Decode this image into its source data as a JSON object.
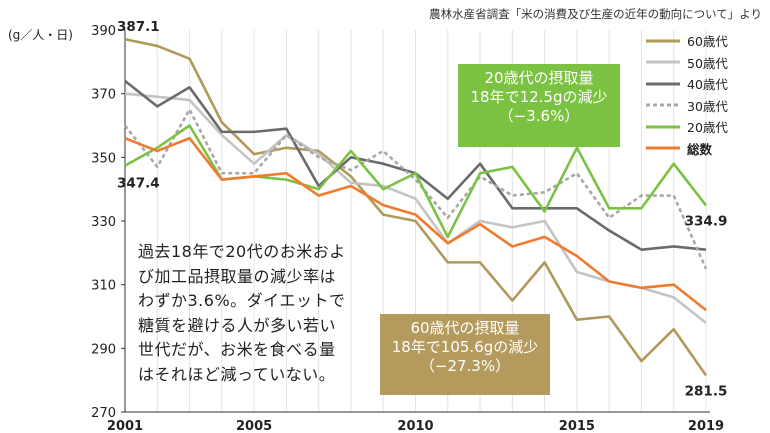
{
  "source_note": "農林水産省調査「米の消費及び生産の近年の動向について」より",
  "chart_data": {
    "type": "line",
    "ylabel": "(g／人・日)",
    "ylim": [
      270,
      390
    ],
    "yticks": [
      270,
      290,
      310,
      330,
      350,
      370,
      390
    ],
    "xlim": [
      2001,
      2019
    ],
    "xticks": [
      2001,
      2005,
      2010,
      2015,
      2019
    ],
    "x": [
      2001,
      2002,
      2003,
      2004,
      2005,
      2006,
      2007,
      2008,
      2009,
      2010,
      2011,
      2012,
      2013,
      2014,
      2015,
      2016,
      2017,
      2018,
      2019
    ],
    "grid": "vertical",
    "legend_position": "top-right",
    "series": [
      {
        "name": "60歳代",
        "color": "#b09a5a",
        "dash": "solid",
        "values": [
          387.1,
          385,
          381,
          361,
          351,
          353,
          352,
          344,
          332,
          330,
          317,
          317,
          305,
          317,
          299,
          300,
          286,
          296,
          281.5
        ]
      },
      {
        "name": "50歳代",
        "color": "#c4c4c4",
        "dash": "solid",
        "values": [
          370,
          369,
          368,
          357,
          348,
          357,
          351,
          342,
          341,
          337,
          323,
          330,
          328,
          330,
          314,
          311,
          309,
          306,
          298
        ]
      },
      {
        "name": "40歳代",
        "color": "#6b6b6b",
        "dash": "solid",
        "values": [
          374,
          366,
          372,
          358,
          358,
          359,
          341,
          350,
          348,
          345,
          337,
          348,
          334,
          334,
          334,
          327,
          321,
          322,
          321
        ]
      },
      {
        "name": "30歳代",
        "color": "#a8a8a8",
        "dash": "dashed",
        "values": [
          360,
          347,
          365,
          345,
          345,
          357,
          350,
          346,
          352,
          343,
          331,
          344,
          338,
          339,
          345,
          331,
          338,
          338,
          315
        ]
      },
      {
        "name": "20歳代",
        "color": "#7cc242",
        "dash": "solid",
        "values": [
          347.4,
          353,
          360,
          343,
          344,
          343,
          340,
          352,
          340,
          345,
          325,
          345,
          347,
          333,
          353,
          334,
          334,
          348,
          334.9
        ]
      },
      {
        "name": "総数",
        "color": "#f07a2e",
        "dash": "solid",
        "values": [
          356,
          352,
          356,
          343,
          344,
          345,
          338,
          341,
          335,
          332,
          323,
          329,
          322,
          325,
          319,
          311,
          309,
          310,
          302
        ]
      }
    ],
    "data_labels": [
      {
        "series": "60歳代",
        "x": 2001,
        "text": "387.1"
      },
      {
        "series": "20歳代",
        "x": 2001,
        "text": "347.4"
      },
      {
        "series": "20歳代",
        "x": 2019,
        "text": "334.9"
      },
      {
        "series": "60歳代",
        "x": 2019,
        "text": "281.5"
      }
    ]
  },
  "callout_20s": {
    "line1": "20歳代の摂取量",
    "line2": "18年で12.5gの減少",
    "line3": "（−3.6%）"
  },
  "callout_60s": {
    "line1": "60歳代の摂取量",
    "line2": "18年で105.6gの減少",
    "line3": "（−27.3%）"
  },
  "note_lines": [
    "過去18年で20代のお米およ",
    "び加工品摂取量の減少率は",
    "わずか3.6%。ダイエットで",
    "糖質を避ける人が多い若い",
    "世代だが、お米を食べる量",
    "はそれほど減っていない。"
  ]
}
